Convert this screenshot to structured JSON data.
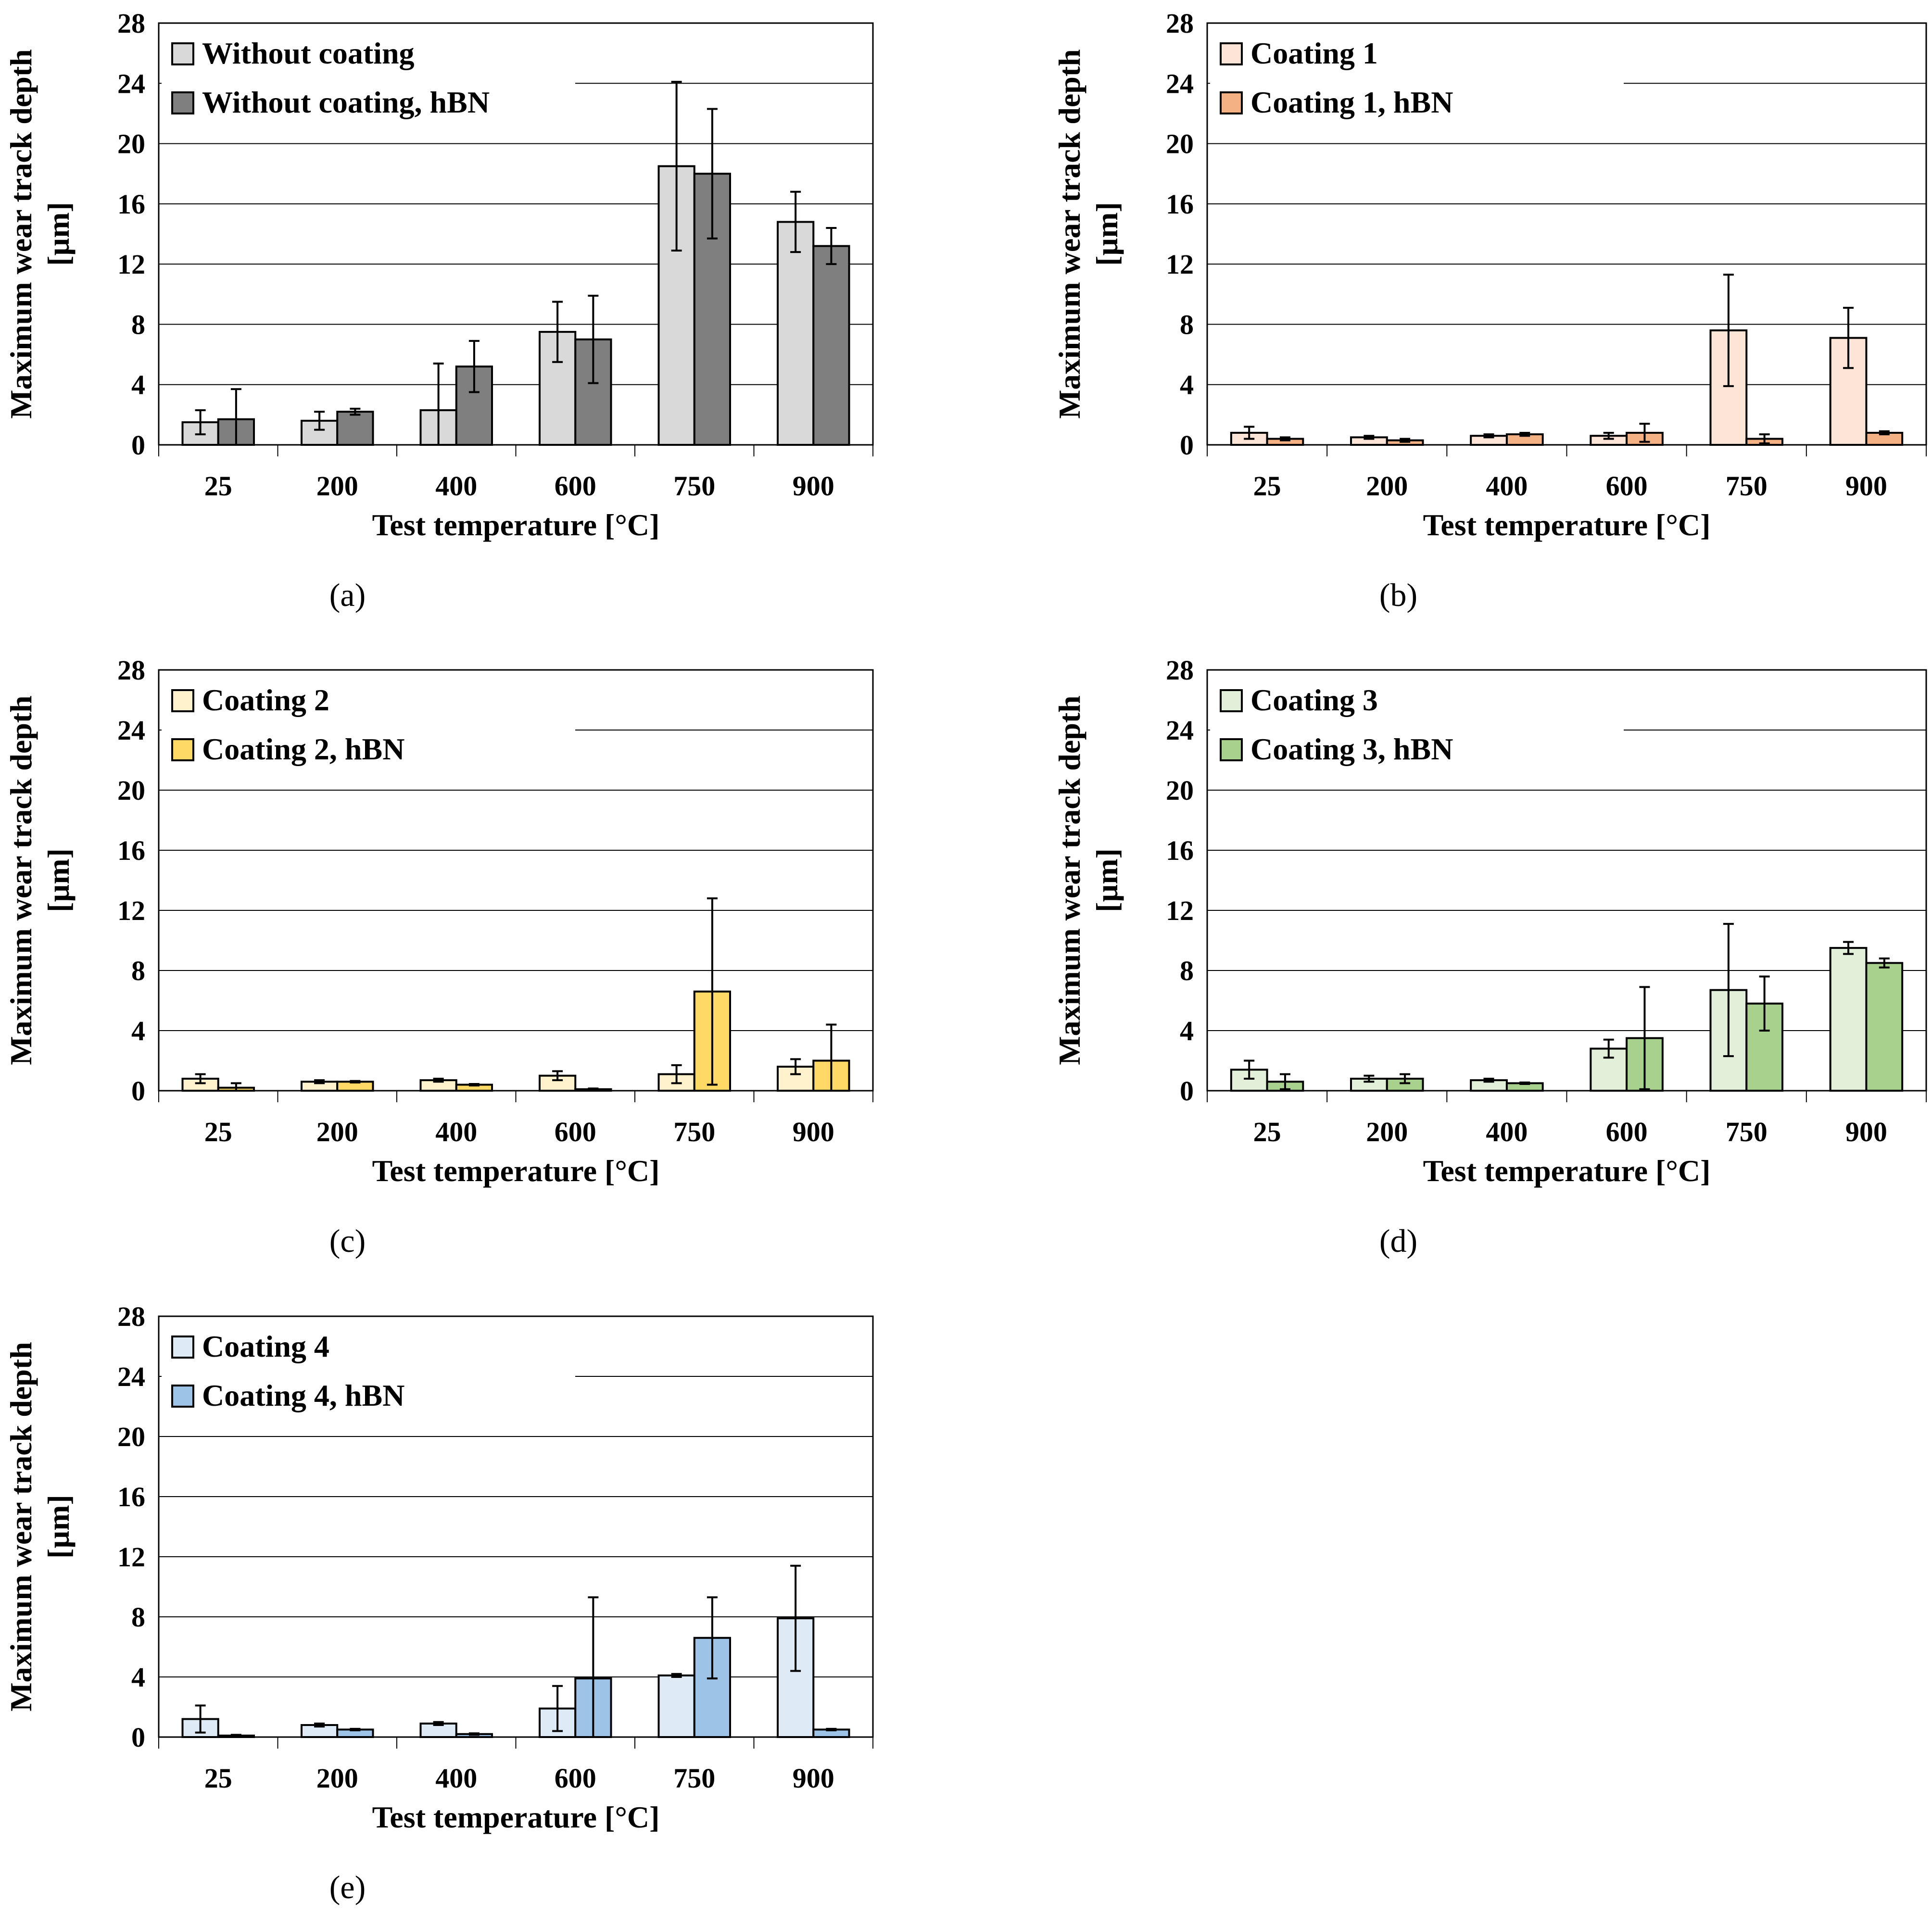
{
  "chart_data": [
    {
      "panel": "(a)",
      "type": "bar",
      "categories": [
        "25",
        "200",
        "400",
        "600",
        "750",
        "900"
      ],
      "xlabel": "Test temperature [°C]",
      "ylabel": "Maximum wear track depth [µm]",
      "ylabel_lines": [
        "Maximum wear track depth",
        "[µm]"
      ],
      "yticks": [
        "0",
        "4",
        "8",
        "12",
        "16",
        "20",
        "24",
        "28"
      ],
      "ylim": [
        0,
        28
      ],
      "legend_position": "top-left",
      "series": [
        {
          "name": "Without coating",
          "color": "#d9d9d9",
          "values": [
            1.5,
            1.6,
            2.3,
            7.5,
            18.5,
            14.8
          ],
          "errors": [
            0.8,
            0.6,
            3.1,
            2.0,
            5.6,
            2.0
          ]
        },
        {
          "name": "Without coating, hBN",
          "color": "#7f7f7f",
          "values": [
            1.7,
            2.2,
            5.2,
            7.0,
            18.0,
            13.2
          ],
          "errors": [
            2.0,
            0.2,
            1.7,
            2.9,
            4.3,
            1.2
          ]
        }
      ]
    },
    {
      "panel": "(b)",
      "type": "bar",
      "categories": [
        "25",
        "200",
        "400",
        "600",
        "750",
        "900"
      ],
      "xlabel": "Test temperature [°C]",
      "ylabel": "Maximum wear track depth [µm]",
      "ylabel_lines": [
        "Maximum wear track depth",
        "[µm]"
      ],
      "yticks": [
        "0",
        "4",
        "8",
        "12",
        "16",
        "20",
        "24",
        "28"
      ],
      "ylim": [
        0,
        28
      ],
      "legend_position": "top-left",
      "series": [
        {
          "name": "Coating 1",
          "color": "#fce4d6",
          "values": [
            0.8,
            0.5,
            0.6,
            0.6,
            7.6,
            7.1
          ],
          "errors": [
            0.4,
            0.1,
            0.1,
            0.2,
            3.7,
            2.0
          ]
        },
        {
          "name": "Coating 1, hBN",
          "color": "#f4b183",
          "values": [
            0.4,
            0.3,
            0.7,
            0.8,
            0.4,
            0.8
          ],
          "errors": [
            0.1,
            0.1,
            0.1,
            0.6,
            0.3,
            0.1
          ]
        }
      ]
    },
    {
      "panel": "(c)",
      "type": "bar",
      "categories": [
        "25",
        "200",
        "400",
        "600",
        "750",
        "900"
      ],
      "xlabel": "Test temperature [°C]",
      "ylabel": "Maximum wear track depth [µm]",
      "ylabel_lines": [
        "Maximum wear track depth",
        "[µm]"
      ],
      "yticks": [
        "0",
        "4",
        "8",
        "12",
        "16",
        "20",
        "24",
        "28"
      ],
      "ylim": [
        0,
        28
      ],
      "legend_position": "top-left",
      "series": [
        {
          "name": "Coating 2",
          "color": "#fff2cc",
          "values": [
            0.8,
            0.6,
            0.7,
            1.0,
            1.1,
            1.6
          ],
          "errors": [
            0.3,
            0.1,
            0.1,
            0.3,
            0.6,
            0.5
          ]
        },
        {
          "name": "Coating 2, hBN",
          "color": "#ffd966",
          "values": [
            0.2,
            0.6,
            0.4,
            0.1,
            6.6,
            2.0
          ],
          "errors": [
            0.3,
            0.05,
            0.05,
            0.05,
            6.2,
            2.4
          ]
        }
      ]
    },
    {
      "panel": "(d)",
      "type": "bar",
      "categories": [
        "25",
        "200",
        "400",
        "600",
        "750",
        "900"
      ],
      "xlabel": "Test temperature [°C]",
      "ylabel": "Maximum wear track depth [µm]",
      "ylabel_lines": [
        "Maximum wear track depth",
        "[µm]"
      ],
      "yticks": [
        "0",
        "4",
        "8",
        "12",
        "16",
        "20",
        "24",
        "28"
      ],
      "ylim": [
        0,
        28
      ],
      "legend_position": "top-left",
      "series": [
        {
          "name": "Coating 3",
          "color": "#e2f0d9",
          "values": [
            1.4,
            0.8,
            0.7,
            2.8,
            6.7,
            9.5
          ],
          "errors": [
            0.6,
            0.2,
            0.1,
            0.6,
            4.4,
            0.4
          ]
        },
        {
          "name": "Coating 3, hBN",
          "color": "#a9d18e",
          "values": [
            0.6,
            0.8,
            0.5,
            3.5,
            5.8,
            8.5
          ],
          "errors": [
            0.5,
            0.3,
            0.05,
            3.4,
            1.8,
            0.3
          ]
        }
      ]
    },
    {
      "panel": "(e)",
      "type": "bar",
      "categories": [
        "25",
        "200",
        "400",
        "600",
        "750",
        "900"
      ],
      "xlabel": "Test temperature [°C]",
      "ylabel": "Maximum wear track depth [µm]",
      "ylabel_lines": [
        "Maximum wear track depth",
        "[µm]"
      ],
      "yticks": [
        "0",
        "4",
        "8",
        "12",
        "16",
        "20",
        "24",
        "28"
      ],
      "ylim": [
        0,
        28
      ],
      "legend_position": "top-left",
      "series": [
        {
          "name": "Coating 4",
          "color": "#deebf7",
          "values": [
            1.2,
            0.8,
            0.9,
            1.9,
            4.1,
            7.9
          ],
          "errors": [
            0.9,
            0.1,
            0.1,
            1.5,
            0.1,
            3.5
          ]
        },
        {
          "name": "Coating 4, hBN",
          "color": "#9dc3e6",
          "values": [
            0.1,
            0.5,
            0.2,
            3.9,
            6.6,
            0.5
          ],
          "errors": [
            0.05,
            0.05,
            0.05,
            5.4,
            2.7,
            0.05
          ]
        }
      ]
    }
  ]
}
